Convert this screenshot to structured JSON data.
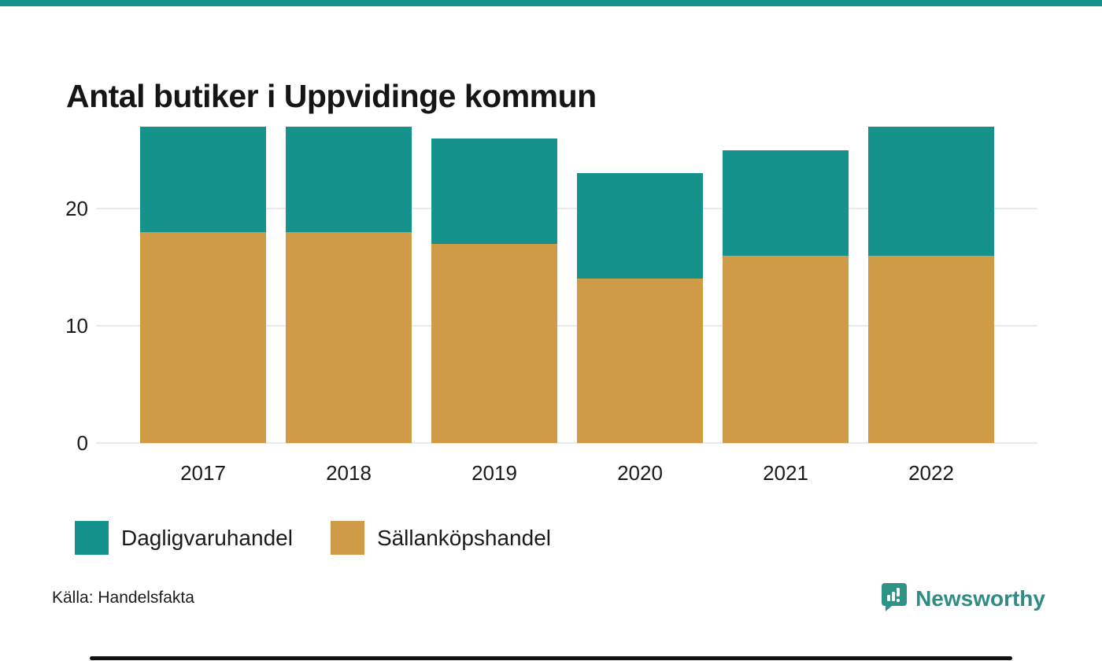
{
  "page": {
    "background": "#ffffff",
    "top_accent_color": "#15928b"
  },
  "header": {
    "title": "Antal butiker i Uppvidinge kommun"
  },
  "chart_data": {
    "type": "bar",
    "stacked": true,
    "title": "Antal butiker i Uppvidinge kommun",
    "categories": [
      "2017",
      "2018",
      "2019",
      "2020",
      "2021",
      "2022"
    ],
    "series": [
      {
        "name": "Dagligvaruhandel",
        "color": "#15928b",
        "values": [
          9,
          9,
          9,
          9,
          9,
          11
        ]
      },
      {
        "name": "Sällanköpshandel",
        "color": "#cf9b46",
        "values": [
          18,
          18,
          17,
          14,
          16,
          16
        ]
      }
    ],
    "totals": [
      27,
      27,
      26,
      23,
      25,
      27
    ],
    "stack_bottom_to_top": [
      "Sällanköpshandel",
      "Dagligvaruhandel"
    ],
    "xlabel": "",
    "ylabel": "",
    "yticks": [
      0,
      10,
      20
    ],
    "ylim": [
      0,
      27.5
    ],
    "grid": "horizontal",
    "legend_position": "bottom-left"
  },
  "legend": {
    "items": [
      {
        "label": "Dagligvaruhandel",
        "color": "#15928b"
      },
      {
        "label": "Sällanköpshandel",
        "color": "#cf9b46"
      }
    ]
  },
  "footer": {
    "source": "Källa: Handelsfakta",
    "brand": "Newsworthy",
    "brand_color": "#2e8c84",
    "brand_icon": "bar-chart-speech-bubble-icon"
  }
}
